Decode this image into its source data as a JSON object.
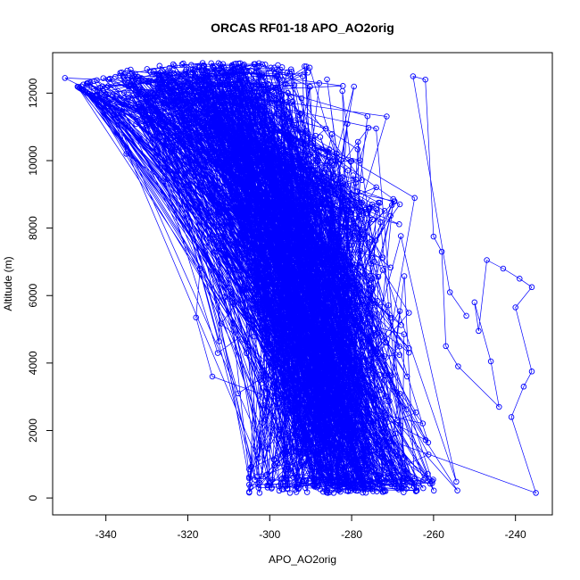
{
  "chart_data": {
    "type": "scatter",
    "title": "ORCAS RF01-18 APO_AO2orig",
    "xlabel": "APO_AO2orig",
    "ylabel": "Altitude (m)",
    "xlim": [
      -353,
      -231
    ],
    "ylim": [
      -500,
      13200
    ],
    "x_ticks": [
      -340,
      -320,
      -300,
      -280,
      -260,
      -240
    ],
    "y_ticks": [
      0,
      2000,
      4000,
      6000,
      8000,
      10000,
      12000
    ],
    "x_tick_labels": [
      "-340",
      "-320",
      "-300",
      "-280",
      "-260",
      "-240"
    ],
    "y_tick_labels": [
      "0",
      "2000",
      "4000",
      "6000",
      "8000",
      "10000",
      "12000"
    ],
    "series_color": "#0000ff",
    "marker": "open-circle",
    "connected": true,
    "grid": false,
    "profile_envelope": [
      {
        "altitude": 200,
        "x_min": -305,
        "x_max": -247,
        "x_center": -282
      },
      {
        "altitude": 1000,
        "x_min": -305,
        "x_max": -255,
        "x_center": -283
      },
      {
        "altitude": 2000,
        "x_min": -307,
        "x_max": -262,
        "x_center": -285
      },
      {
        "altitude": 3000,
        "x_min": -309,
        "x_max": -265,
        "x_center": -287
      },
      {
        "altitude": 4000,
        "x_min": -313,
        "x_max": -266,
        "x_center": -289
      },
      {
        "altitude": 5000,
        "x_min": -312,
        "x_max": -266,
        "x_center": -289
      },
      {
        "altitude": 6000,
        "x_min": -311,
        "x_max": -266,
        "x_center": -289
      },
      {
        "altitude": 7000,
        "x_min": -312,
        "x_max": -268,
        "x_center": -290
      },
      {
        "altitude": 8000,
        "x_min": -316,
        "x_max": -268,
        "x_center": -291
      },
      {
        "altitude": 8600,
        "x_min": -312,
        "x_max": -262,
        "x_center": -290
      },
      {
        "altitude": 9500,
        "x_min": -318,
        "x_max": -270,
        "x_center": -293
      },
      {
        "altitude": 10500,
        "x_min": -325,
        "x_max": -268,
        "x_center": -298
      },
      {
        "altitude": 11500,
        "x_min": -338,
        "x_max": -265,
        "x_center": -318
      },
      {
        "altitude": 12200,
        "x_min": -347,
        "x_max": -262,
        "x_center": -322
      },
      {
        "altitude": 12850,
        "x_min": -330,
        "x_max": -283,
        "x_center": -312
      }
    ],
    "outlier_points": [
      {
        "x": -350,
        "y": 12450
      },
      {
        "x": -346,
        "y": 12200
      },
      {
        "x": -340,
        "y": 11700
      },
      {
        "x": -337,
        "y": 11250
      },
      {
        "x": -335,
        "y": 10200
      },
      {
        "x": -326,
        "y": 9400
      },
      {
        "x": -317,
        "y": 6800
      },
      {
        "x": -318,
        "y": 5350
      },
      {
        "x": -314,
        "y": 3600
      },
      {
        "x": -235,
        "y": 150
      },
      {
        "x": -241,
        "y": 2400
      },
      {
        "x": -238,
        "y": 3300
      },
      {
        "x": -236,
        "y": 3750
      },
      {
        "x": -240,
        "y": 5650
      },
      {
        "x": -236,
        "y": 6250
      },
      {
        "x": -239,
        "y": 6500
      },
      {
        "x": -243,
        "y": 6800
      },
      {
        "x": -247,
        "y": 7050
      },
      {
        "x": -249,
        "y": 4950
      },
      {
        "x": -250,
        "y": 5800
      },
      {
        "x": -246,
        "y": 4050
      },
      {
        "x": -244,
        "y": 2700
      },
      {
        "x": -254,
        "y": 3900
      },
      {
        "x": -257,
        "y": 4500
      },
      {
        "x": -258,
        "y": 7300
      },
      {
        "x": -260,
        "y": 7750
      },
      {
        "x": -262,
        "y": 12400
      },
      {
        "x": -265,
        "y": 12500
      },
      {
        "x": -256,
        "y": 6100
      },
      {
        "x": -252,
        "y": 5400
      }
    ],
    "sampled_points": 1800
  }
}
